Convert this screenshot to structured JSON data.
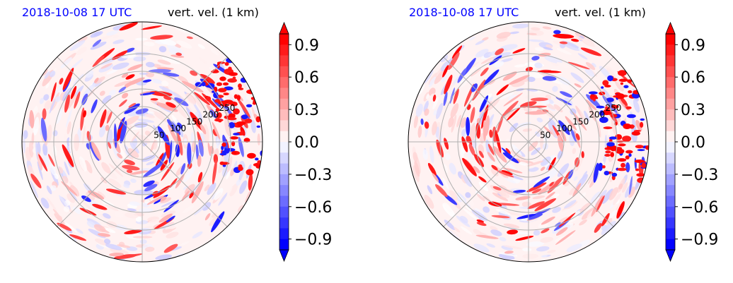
{
  "colors": {
    "positive": "#ff0000",
    "negative": "#0000ff",
    "neutral": "#ffffff",
    "grid": "#b0b0b0",
    "title_date": "#0000ff"
  },
  "chart_data": [
    {
      "type": "heatmap",
      "projection": "polar",
      "title_left": "2018-10-08 17 UTC",
      "title_right": "vert. vel. (1 km)",
      "radial_ticks": [
        "50",
        "100",
        "150",
        "200",
        "250"
      ],
      "radial_tick_values": [
        50,
        100,
        150,
        200,
        250
      ],
      "grid": true,
      "colorbar": {
        "range": [
          -1.0,
          1.0
        ],
        "ticks": [
          0.9,
          0.6,
          0.3,
          0.0,
          -0.3,
          -0.6,
          -0.9
        ],
        "tick_labels": [
          "0.9",
          "0.6",
          "0.3",
          "0.0",
          "−0.3",
          "−0.6",
          "−0.9"
        ],
        "extend": "both",
        "cmap": "bwr"
      }
    },
    {
      "type": "heatmap",
      "projection": "polar",
      "title_left": "2018-10-08 17 UTC",
      "title_right": "vert. vel. (1 km)",
      "radial_ticks": [
        "50",
        "100",
        "150",
        "200",
        "250"
      ],
      "radial_tick_values": [
        50,
        100,
        150,
        200,
        250
      ],
      "grid": true,
      "colorbar": {
        "range": [
          -1.0,
          1.0
        ],
        "ticks": [
          0.9,
          0.6,
          0.3,
          0.0,
          -0.3,
          -0.6,
          -0.9
        ],
        "tick_labels": [
          "0.9",
          "0.6",
          "0.3",
          "0.0",
          "−0.3",
          "−0.6",
          "−0.9"
        ],
        "extend": "both",
        "cmap": "bwr"
      }
    }
  ]
}
